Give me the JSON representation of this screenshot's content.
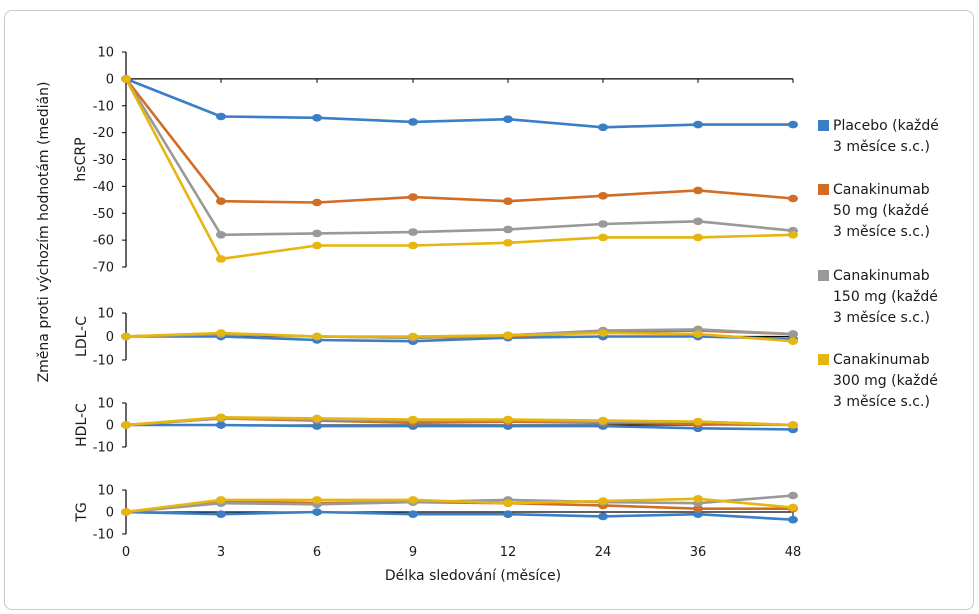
{
  "chart_data": {
    "type": "line",
    "ylabel": "Změna proti výchozím hodnotám (medián)",
    "xlabel": "Délka sledování (měsíce)",
    "x": [
      0,
      3,
      6,
      9,
      12,
      24,
      36,
      48
    ],
    "x_ticks": [
      "0",
      "3",
      "6",
      "9",
      "12",
      "24",
      "36",
      "48"
    ],
    "colors": {
      "placebo": "#3a7fc6",
      "cana50": "#d26d26",
      "cana150": "#999999",
      "cana300": "#e6b50f",
      "axis": "#000000"
    },
    "legend": [
      {
        "key": "placebo",
        "label_lines": [
          "Placebo (každé",
          "3 měsíce s.c.)"
        ]
      },
      {
        "key": "cana50",
        "label_lines": [
          "Canakinumab",
          "50 mg (každé",
          "3 měsíce s.c.)"
        ]
      },
      {
        "key": "cana150",
        "label_lines": [
          "Canakinumab",
          "150 mg (každé",
          "3 měsíce s.c.)"
        ]
      },
      {
        "key": "cana300",
        "label_lines": [
          "Canakinumab",
          "300 mg (každé",
          "3 měsíce s.c.)"
        ]
      }
    ],
    "panels": [
      {
        "name": "hsCRP",
        "ylim": [
          -70,
          10
        ],
        "yticks": [
          10,
          0,
          -10,
          -20,
          -30,
          -40,
          -50,
          -60,
          -70
        ],
        "series": [
          {
            "key": "placebo",
            "values": [
              0,
              -14,
              -14.5,
              -16,
              -15,
              -18,
              -17,
              -17
            ]
          },
          {
            "key": "cana50",
            "values": [
              0,
              -45.5,
              -46,
              -44,
              -45.5,
              -43.5,
              -41.5,
              -44.5
            ]
          },
          {
            "key": "cana150",
            "values": [
              0,
              -58,
              -57.5,
              -57,
              -56,
              -54,
              -53,
              -56.5
            ]
          },
          {
            "key": "cana300",
            "values": [
              0,
              -67,
              -62,
              -62,
              -61,
              -59,
              -59,
              -58
            ]
          }
        ]
      },
      {
        "name": "LDL-C",
        "ylim": [
          -10,
          10
        ],
        "yticks": [
          10,
          0,
          -10
        ],
        "series": [
          {
            "key": "placebo",
            "values": [
              0,
              0,
              -1.5,
              -2,
              -0.5,
              0,
              0,
              -1
            ]
          },
          {
            "key": "cana50",
            "values": [
              0,
              1,
              0,
              -0.5,
              0,
              2,
              2.5,
              1
            ]
          },
          {
            "key": "cana150",
            "values": [
              0,
              1,
              0,
              -0.5,
              0.5,
              2.5,
              3,
              1
            ]
          },
          {
            "key": "cana300",
            "values": [
              0,
              1.5,
              0,
              0,
              0.5,
              1.5,
              1,
              -2
            ]
          }
        ]
      },
      {
        "name": "HDL-C",
        "ylim": [
          -10,
          10
        ],
        "yticks": [
          10,
          0,
          -10
        ],
        "series": [
          {
            "key": "placebo",
            "values": [
              0,
              0,
              -0.5,
              -0.5,
              -0.5,
              -0.5,
              -1.5,
              -2
            ]
          },
          {
            "key": "cana50",
            "values": [
              0,
              3,
              2,
              1,
              1.5,
              1,
              0.5,
              0
            ]
          },
          {
            "key": "cana150",
            "values": [
              0,
              3,
              2.5,
              2,
              2,
              1.5,
              1.5,
              0
            ]
          },
          {
            "key": "cana300",
            "values": [
              0,
              3.5,
              3,
              2.5,
              2.5,
              2,
              1.5,
              0
            ]
          }
        ]
      },
      {
        "name": "TG",
        "ylim": [
          -10,
          10
        ],
        "yticks": [
          10,
          0,
          -10
        ],
        "series": [
          {
            "key": "placebo",
            "values": [
              0,
              -1,
              0,
              -1,
              -1,
              -2,
              -1,
              -3.5
            ]
          },
          {
            "key": "cana50",
            "values": [
              0,
              5,
              4,
              4.5,
              4,
              3,
              1.5,
              1.5
            ]
          },
          {
            "key": "cana150",
            "values": [
              0,
              4,
              3.5,
              4.5,
              5.5,
              4.5,
              4,
              7.5
            ]
          },
          {
            "key": "cana300",
            "values": [
              0,
              5.5,
              5.5,
              5.5,
              4,
              5,
              6,
              2
            ]
          }
        ]
      }
    ]
  }
}
